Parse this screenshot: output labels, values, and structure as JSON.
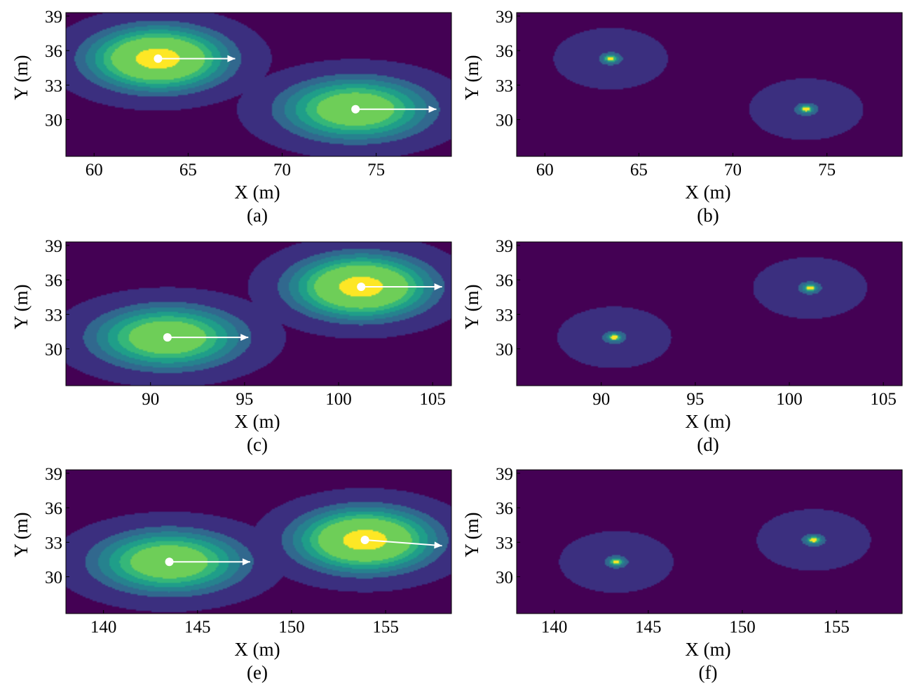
{
  "figure": {
    "background": "#ffffff",
    "colormap": [
      "#440154",
      "#3b2f7f",
      "#31688e",
      "#26828e",
      "#1f9e89",
      "#35b779",
      "#6ece58",
      "#b5de2b",
      "#fde725"
    ],
    "arrow_color": "#ffffff"
  },
  "chart_data": [
    {
      "id": "a",
      "type": "heatmap",
      "panel_label": "(a)",
      "xlabel": "X (m)",
      "ylabel": "Y (m)",
      "xlim": [
        58.5,
        79
      ],
      "ylim": [
        26.8,
        39.3
      ],
      "xticks": [
        60,
        65,
        70,
        75
      ],
      "yticks": [
        30,
        33,
        36,
        39
      ],
      "field": "wide",
      "sources": [
        {
          "x": 63.4,
          "y": 35.3,
          "sx": 3.6,
          "sy": 2.7,
          "peak": 1.0
        },
        {
          "x": 73.9,
          "y": 30.9,
          "sx": 3.9,
          "sy": 2.7,
          "peak": 0.82
        }
      ],
      "arrows": [
        {
          "x0": 63.4,
          "y0": 35.3,
          "x1": 67.5,
          "y1": 35.3
        },
        {
          "x0": 73.9,
          "y0": 30.9,
          "x1": 78.2,
          "y1": 30.9
        }
      ]
    },
    {
      "id": "b",
      "type": "heatmap",
      "panel_label": "(b)",
      "xlabel": "X (m)",
      "ylabel": "Y (m)",
      "xlim": [
        58.5,
        79
      ],
      "ylim": [
        26.8,
        39.3
      ],
      "xticks": [
        60,
        65,
        70,
        75
      ],
      "yticks": [
        30,
        33,
        36,
        39
      ],
      "field": "narrow",
      "sources": [
        {
          "x": 63.5,
          "y": 35.3,
          "sx": 3.4,
          "sy": 3.0,
          "peak": 1.0
        },
        {
          "x": 73.9,
          "y": 30.9,
          "sx": 3.4,
          "sy": 3.0,
          "peak": 1.0
        }
      ],
      "arrows": []
    },
    {
      "id": "c",
      "type": "heatmap",
      "panel_label": "(c)",
      "xlabel": "X (m)",
      "ylabel": "Y (m)",
      "xlim": [
        85.5,
        106
      ],
      "ylim": [
        26.8,
        39.3
      ],
      "xticks": [
        90,
        95,
        100,
        105
      ],
      "yticks": [
        30,
        33,
        36,
        39
      ],
      "field": "wide",
      "sources": [
        {
          "x": 90.9,
          "y": 31.0,
          "sx": 3.9,
          "sy": 2.7,
          "peak": 0.82
        },
        {
          "x": 101.2,
          "y": 35.4,
          "sx": 3.6,
          "sy": 2.7,
          "peak": 1.0
        }
      ],
      "arrows": [
        {
          "x0": 90.9,
          "y0": 31.0,
          "x1": 95.2,
          "y1": 31.0
        },
        {
          "x0": 101.2,
          "y0": 35.4,
          "x1": 105.5,
          "y1": 35.4
        }
      ]
    },
    {
      "id": "d",
      "type": "heatmap",
      "panel_label": "(d)",
      "xlabel": "X (m)",
      "ylabel": "Y (m)",
      "xlim": [
        85.5,
        106
      ],
      "ylim": [
        26.8,
        39.3
      ],
      "xticks": [
        90,
        95,
        100,
        105
      ],
      "yticks": [
        30,
        33,
        36,
        39
      ],
      "field": "narrow",
      "sources": [
        {
          "x": 90.7,
          "y": 31.0,
          "sx": 3.4,
          "sy": 3.0,
          "peak": 1.0
        },
        {
          "x": 101.1,
          "y": 35.3,
          "sx": 3.4,
          "sy": 3.0,
          "peak": 1.0
        }
      ],
      "arrows": []
    },
    {
      "id": "e",
      "type": "heatmap",
      "panel_label": "(e)",
      "xlabel": "X (m)",
      "ylabel": "Y (m)",
      "xlim": [
        138,
        158.5
      ],
      "ylim": [
        26.8,
        39.3
      ],
      "xticks": [
        140,
        145,
        150,
        155
      ],
      "yticks": [
        30,
        33,
        36,
        39
      ],
      "field": "wide",
      "sources": [
        {
          "x": 143.5,
          "y": 31.3,
          "sx": 3.9,
          "sy": 2.7,
          "peak": 0.82
        },
        {
          "x": 153.9,
          "y": 33.2,
          "sx": 3.6,
          "sy": 2.7,
          "peak": 1.0
        }
      ],
      "arrows": [
        {
          "x0": 143.5,
          "y0": 31.3,
          "x1": 147.8,
          "y1": 31.3
        },
        {
          "x0": 153.9,
          "y0": 33.2,
          "x1": 158.0,
          "y1": 32.7
        }
      ]
    },
    {
      "id": "f",
      "type": "heatmap",
      "panel_label": "(f)",
      "xlabel": "X (m)",
      "ylabel": "Y (m)",
      "xlim": [
        138,
        158.5
      ],
      "ylim": [
        26.8,
        39.3
      ],
      "xticks": [
        140,
        145,
        150,
        155
      ],
      "yticks": [
        30,
        33,
        36,
        39
      ],
      "field": "narrow",
      "sources": [
        {
          "x": 143.3,
          "y": 31.3,
          "sx": 3.4,
          "sy": 3.0,
          "peak": 1.0
        },
        {
          "x": 153.8,
          "y": 33.2,
          "sx": 3.4,
          "sy": 3.0,
          "peak": 1.0
        }
      ],
      "arrows": []
    }
  ]
}
